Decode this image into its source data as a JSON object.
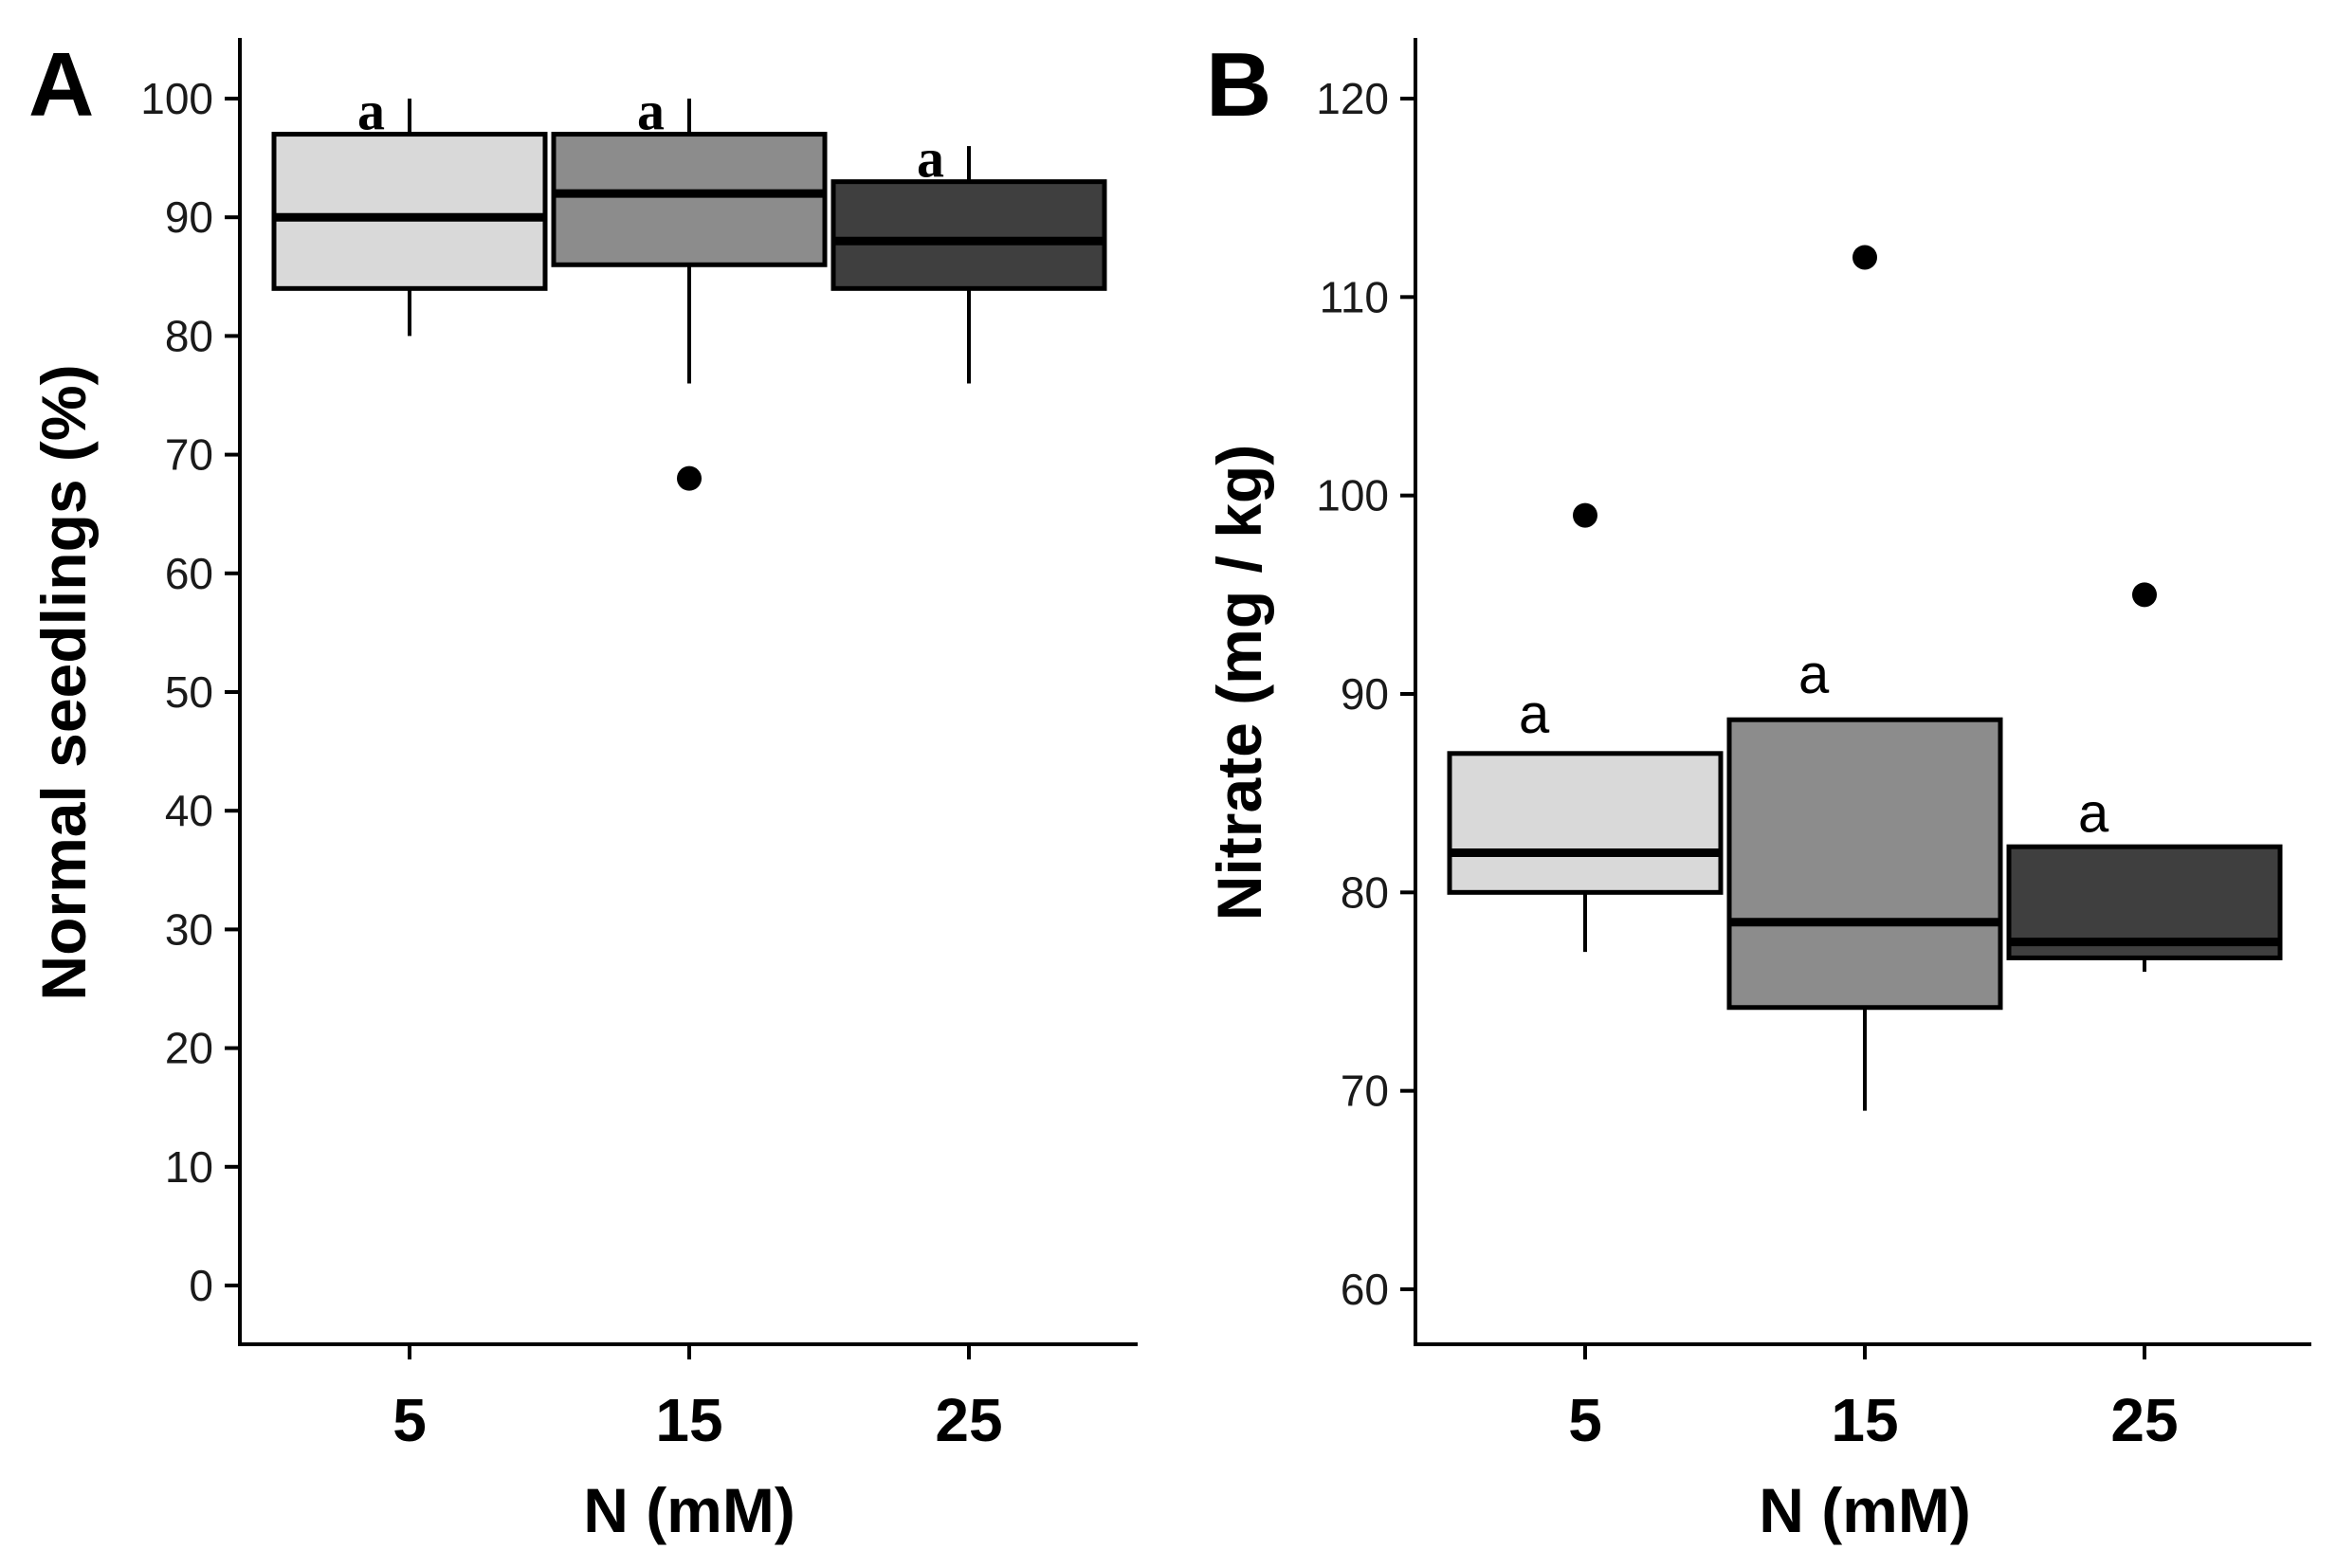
{
  "chart_data": [
    {
      "type": "box",
      "panel_label": "A",
      "title": "",
      "xlabel": "N (mM)",
      "ylabel": "Normal seedlings (%)",
      "categories": [
        "5",
        "15",
        "25"
      ],
      "yticks": [
        "0",
        "10",
        "20",
        "30",
        "40",
        "50",
        "60",
        "70",
        "80",
        "90",
        "100"
      ],
      "ylim": [
        -5,
        105
      ],
      "grid": false,
      "series": [
        {
          "name": "5",
          "min": 80,
          "q1": 84,
          "median": 90,
          "q3": 97,
          "max": 100,
          "outliers": [],
          "fill": "#d9d9d9",
          "sig_letter": "a",
          "sig_y": 99
        },
        {
          "name": "15",
          "min": 76,
          "q1": 86,
          "median": 92,
          "q3": 97,
          "max": 100,
          "outliers": [
            68
          ],
          "fill": "#8c8c8c",
          "sig_letter": "a",
          "sig_y": 99
        },
        {
          "name": "25",
          "min": 76,
          "q1": 84,
          "median": 88,
          "q3": 93,
          "max": 96,
          "outliers": [],
          "fill": "#3f3f3f",
          "sig_letter": "a",
          "sig_y": 95
        }
      ]
    },
    {
      "type": "box",
      "panel_label": "B",
      "title": "",
      "xlabel": "N (mM)",
      "ylabel": "Nitrate (mg / kg)",
      "categories": [
        "5",
        "15",
        "25"
      ],
      "yticks": [
        "60",
        "70",
        "80",
        "90",
        "100",
        "110",
        "120"
      ],
      "ylim": [
        57,
        123
      ],
      "grid": false,
      "series": [
        {
          "name": "5",
          "min": 77,
          "q1": 80,
          "median": 82,
          "q3": 87,
          "max": 87,
          "outliers": [
            99
          ],
          "fill": "#d9d9d9",
          "sig_letter": "a",
          "sig_y": 89
        },
        {
          "name": "15",
          "min": 69,
          "q1": 74.2,
          "median": 78.5,
          "q3": 88.7,
          "max": 88.7,
          "outliers": [
            112
          ],
          "fill": "#8c8c8c",
          "sig_letter": "a",
          "sig_y": 91
        },
        {
          "name": "25",
          "min": 76,
          "q1": 76.7,
          "median": 77.5,
          "q3": 82.3,
          "max": 82.3,
          "outliers": [
            95
          ],
          "fill": "#3f3f3f",
          "sig_letter": "a",
          "sig_y": 84
        }
      ]
    }
  ]
}
